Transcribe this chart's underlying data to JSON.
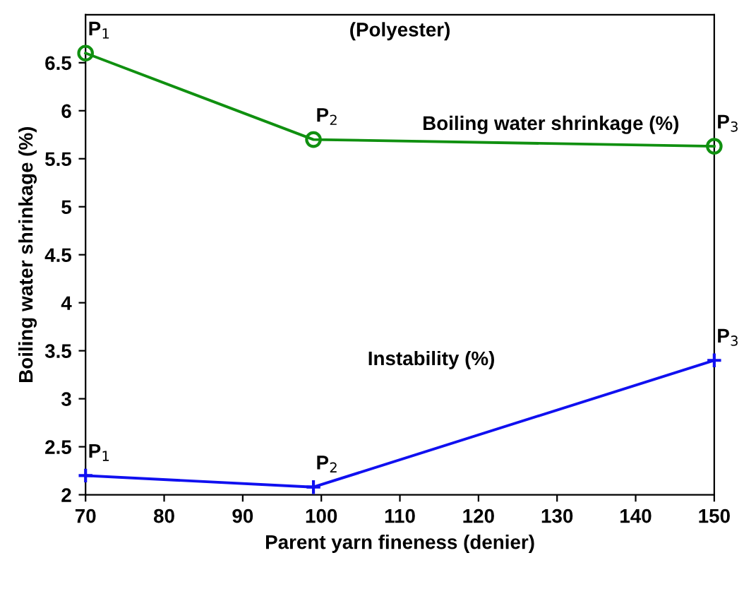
{
  "chart_data": {
    "type": "line",
    "title": "(Polyester)",
    "xlabel": "Parent yarn fineness (denier)",
    "ylabel": "Boiling water shrinkage (%)",
    "series": [
      {
        "name": "Boiling water shrinkage (%)",
        "color": "#109010",
        "marker": "circle",
        "x": [
          70,
          99,
          150
        ],
        "values": [
          6.6,
          5.7,
          5.63
        ]
      },
      {
        "name": "Instability (%)",
        "color": "#1010f0",
        "marker": "cross",
        "x": [
          70,
          99,
          150
        ],
        "values": [
          2.2,
          2.08,
          3.4
        ]
      }
    ],
    "annotations": [
      {
        "text": "P$_{1}$",
        "x": 70,
        "y": 6.6
      },
      {
        "text": "P$_{2}$",
        "x": 99,
        "y": 5.7
      },
      {
        "text": "P$_{3}$",
        "x": 150,
        "y": 5.63
      },
      {
        "text": "P$_{1}$",
        "x": 70,
        "y": 2.2
      },
      {
        "text": "P$_{2}$",
        "x": 99,
        "y": 2.08
      },
      {
        "text": "P$_{3}$",
        "x": 150,
        "y": 3.4
      }
    ],
    "xlim": [
      70,
      150
    ],
    "xticks": [
      70,
      80,
      90,
      100,
      110,
      120,
      130,
      140,
      150
    ],
    "ylim": [
      2,
      7
    ],
    "yticks": [
      2,
      2.5,
      3,
      3.5,
      4,
      4.5,
      5,
      5.5,
      6,
      6.5
    ],
    "grid": false,
    "legend": false
  }
}
